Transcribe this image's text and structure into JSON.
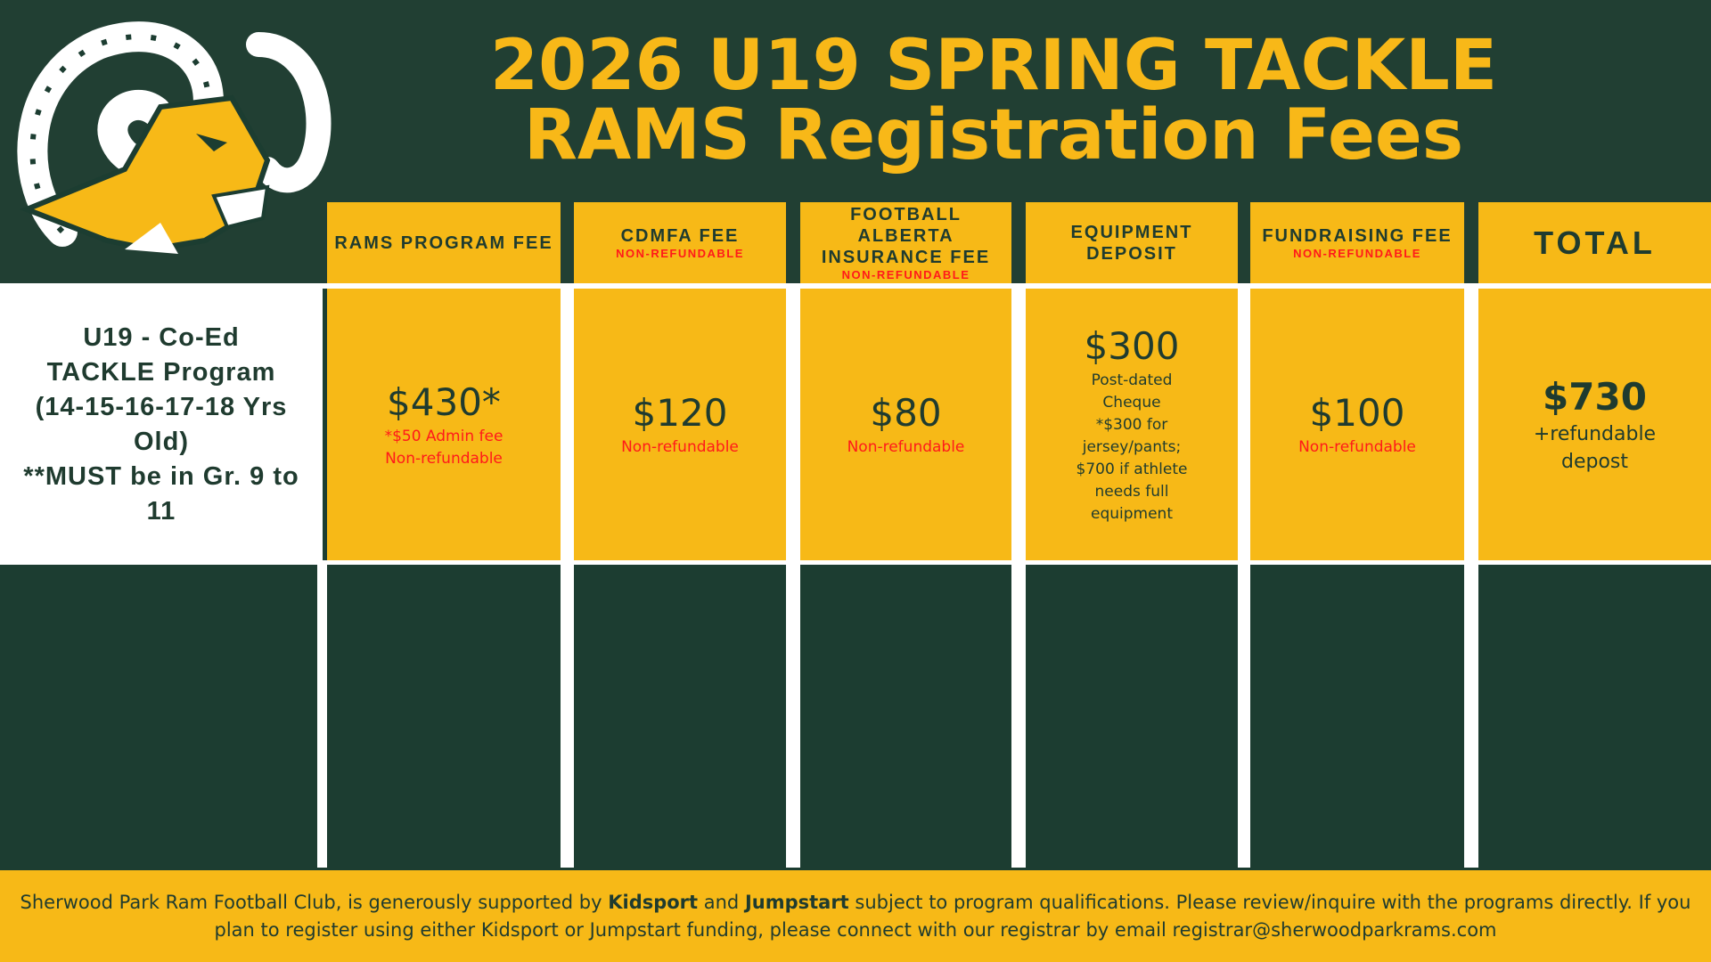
{
  "title": {
    "line1": "2026 U19 SPRING TACKLE",
    "line2": "RAMS Registration Fees"
  },
  "colors": {
    "dark_green": "#213f33",
    "gold": "#f7b917",
    "red": "#ff1a1a",
    "white": "#ffffff"
  },
  "logo": {
    "icon": "ram-head-logo"
  },
  "program": {
    "line1": "U19 - Co-Ed",
    "line2": "TACKLE Program",
    "line3": "(14-15-16-17-18 Yrs Old)",
    "line4": "**MUST be in Gr. 9 to 11"
  },
  "columns": [
    {
      "header": "RAMS PROGRAM FEE",
      "note": "",
      "price": "$430*",
      "sub": [
        "*$50 Admin fee",
        "Non-refundable"
      ]
    },
    {
      "header": "CDMFA FEE",
      "note": "NON-REFUNDABLE",
      "price": "$120",
      "sub": [
        "Non-refundable"
      ]
    },
    {
      "header": "FOOTBALL ALBERTA INSURANCE FEE",
      "note": "NON-REFUNDABLE",
      "price": "$80",
      "sub": [
        "Non-refundable"
      ]
    },
    {
      "header": "EQUIPMENT DEPOSIT",
      "note": "",
      "price": "$300",
      "sub": [
        "Post-dated Cheque",
        "*$300 for jersey/pants; $700 if athlete needs full equipment"
      ]
    },
    {
      "header": "FUNDRAISING FEE",
      "note": "NON-REFUNDABLE",
      "price": "$100",
      "sub": [
        "Non-refundable"
      ]
    },
    {
      "header": "TOTAL",
      "note": "",
      "price": "$730",
      "sub": [
        "+refundable depost"
      ]
    }
  ],
  "footer": {
    "p1": "Sherwood Park Ram Football Club, is generously supported by ",
    "kidsport": "Kidsport",
    "p2": " and ",
    "jumpstart": "Jumpstart",
    "p3": " subject to program qualifications. Please review/inquire with the programs directly. If you plan to register using either Kidsport or Jumpstart funding, please connect with our registrar by email registrar@sherwoodparkrams.com"
  }
}
